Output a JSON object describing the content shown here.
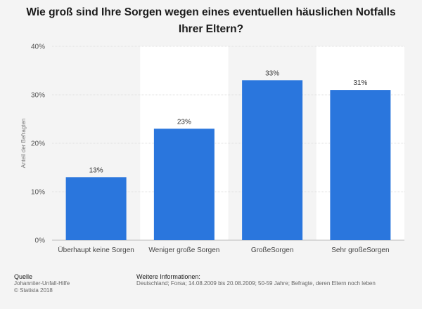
{
  "title": {
    "line1": "Wie groß sind Ihre Sorgen wegen eines eventuellen häuslichen Notfalls",
    "line2": "Ihrer Eltern?"
  },
  "chart_data": {
    "type": "bar",
    "categories": [
      "Überhaupt keine Sorgen",
      "Weniger große Sorgen",
      "GroßeSorgen",
      "Sehr großeSorgen"
    ],
    "values": [
      13,
      23,
      33,
      31
    ],
    "value_labels": [
      "13%",
      "23%",
      "33%",
      "31%"
    ],
    "ylabel": "Anteil der Befragten",
    "ylim": [
      0,
      40
    ],
    "yticks": [
      0,
      10,
      20,
      30,
      40
    ],
    "ytick_labels": [
      "0%",
      "10%",
      "20%",
      "30%",
      "40%"
    ],
    "bar_color": "#2a76dd",
    "grid": true,
    "legend": "none"
  },
  "footer": {
    "source_heading": "Quelle",
    "source_lines": [
      "Johanniter-Unfall-Hilfe",
      "© Statista 2018"
    ],
    "info_heading": "Weitere Informationen:",
    "info_text": "Deutschland; Forsa; 14.08.2009 bis 20.08.2009; 50-59 Jahre; Befragte, deren Eltern noch leben"
  }
}
